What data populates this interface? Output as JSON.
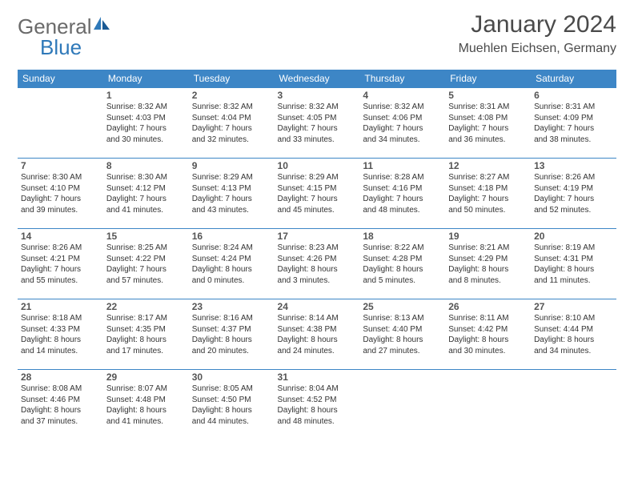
{
  "brand": {
    "name_part1": "General",
    "name_part2": "Blue"
  },
  "title": "January 2024",
  "location": "Muehlen Eichsen, Germany",
  "colors": {
    "header_bg": "#3d86c6",
    "header_text": "#ffffff",
    "cell_border": "#3d86c6",
    "daynum": "#555555",
    "body_text": "#333333",
    "brand_gray": "#6a6a6a",
    "brand_blue": "#2f79b9",
    "background": "#ffffff"
  },
  "weekdays": [
    "Sunday",
    "Monday",
    "Tuesday",
    "Wednesday",
    "Thursday",
    "Friday",
    "Saturday"
  ],
  "weeks": [
    [
      null,
      {
        "n": "1",
        "sr": "8:32 AM",
        "ss": "4:03 PM",
        "dl": "7 hours and 30 minutes."
      },
      {
        "n": "2",
        "sr": "8:32 AM",
        "ss": "4:04 PM",
        "dl": "7 hours and 32 minutes."
      },
      {
        "n": "3",
        "sr": "8:32 AM",
        "ss": "4:05 PM",
        "dl": "7 hours and 33 minutes."
      },
      {
        "n": "4",
        "sr": "8:32 AM",
        "ss": "4:06 PM",
        "dl": "7 hours and 34 minutes."
      },
      {
        "n": "5",
        "sr": "8:31 AM",
        "ss": "4:08 PM",
        "dl": "7 hours and 36 minutes."
      },
      {
        "n": "6",
        "sr": "8:31 AM",
        "ss": "4:09 PM",
        "dl": "7 hours and 38 minutes."
      }
    ],
    [
      {
        "n": "7",
        "sr": "8:30 AM",
        "ss": "4:10 PM",
        "dl": "7 hours and 39 minutes."
      },
      {
        "n": "8",
        "sr": "8:30 AM",
        "ss": "4:12 PM",
        "dl": "7 hours and 41 minutes."
      },
      {
        "n": "9",
        "sr": "8:29 AM",
        "ss": "4:13 PM",
        "dl": "7 hours and 43 minutes."
      },
      {
        "n": "10",
        "sr": "8:29 AM",
        "ss": "4:15 PM",
        "dl": "7 hours and 45 minutes."
      },
      {
        "n": "11",
        "sr": "8:28 AM",
        "ss": "4:16 PM",
        "dl": "7 hours and 48 minutes."
      },
      {
        "n": "12",
        "sr": "8:27 AM",
        "ss": "4:18 PM",
        "dl": "7 hours and 50 minutes."
      },
      {
        "n": "13",
        "sr": "8:26 AM",
        "ss": "4:19 PM",
        "dl": "7 hours and 52 minutes."
      }
    ],
    [
      {
        "n": "14",
        "sr": "8:26 AM",
        "ss": "4:21 PM",
        "dl": "7 hours and 55 minutes."
      },
      {
        "n": "15",
        "sr": "8:25 AM",
        "ss": "4:22 PM",
        "dl": "7 hours and 57 minutes."
      },
      {
        "n": "16",
        "sr": "8:24 AM",
        "ss": "4:24 PM",
        "dl": "8 hours and 0 minutes."
      },
      {
        "n": "17",
        "sr": "8:23 AM",
        "ss": "4:26 PM",
        "dl": "8 hours and 3 minutes."
      },
      {
        "n": "18",
        "sr": "8:22 AM",
        "ss": "4:28 PM",
        "dl": "8 hours and 5 minutes."
      },
      {
        "n": "19",
        "sr": "8:21 AM",
        "ss": "4:29 PM",
        "dl": "8 hours and 8 minutes."
      },
      {
        "n": "20",
        "sr": "8:19 AM",
        "ss": "4:31 PM",
        "dl": "8 hours and 11 minutes."
      }
    ],
    [
      {
        "n": "21",
        "sr": "8:18 AM",
        "ss": "4:33 PM",
        "dl": "8 hours and 14 minutes."
      },
      {
        "n": "22",
        "sr": "8:17 AM",
        "ss": "4:35 PM",
        "dl": "8 hours and 17 minutes."
      },
      {
        "n": "23",
        "sr": "8:16 AM",
        "ss": "4:37 PM",
        "dl": "8 hours and 20 minutes."
      },
      {
        "n": "24",
        "sr": "8:14 AM",
        "ss": "4:38 PM",
        "dl": "8 hours and 24 minutes."
      },
      {
        "n": "25",
        "sr": "8:13 AM",
        "ss": "4:40 PM",
        "dl": "8 hours and 27 minutes."
      },
      {
        "n": "26",
        "sr": "8:11 AM",
        "ss": "4:42 PM",
        "dl": "8 hours and 30 minutes."
      },
      {
        "n": "27",
        "sr": "8:10 AM",
        "ss": "4:44 PM",
        "dl": "8 hours and 34 minutes."
      }
    ],
    [
      {
        "n": "28",
        "sr": "8:08 AM",
        "ss": "4:46 PM",
        "dl": "8 hours and 37 minutes."
      },
      {
        "n": "29",
        "sr": "8:07 AM",
        "ss": "4:48 PM",
        "dl": "8 hours and 41 minutes."
      },
      {
        "n": "30",
        "sr": "8:05 AM",
        "ss": "4:50 PM",
        "dl": "8 hours and 44 minutes."
      },
      {
        "n": "31",
        "sr": "8:04 AM",
        "ss": "4:52 PM",
        "dl": "8 hours and 48 minutes."
      },
      null,
      null,
      null
    ]
  ]
}
